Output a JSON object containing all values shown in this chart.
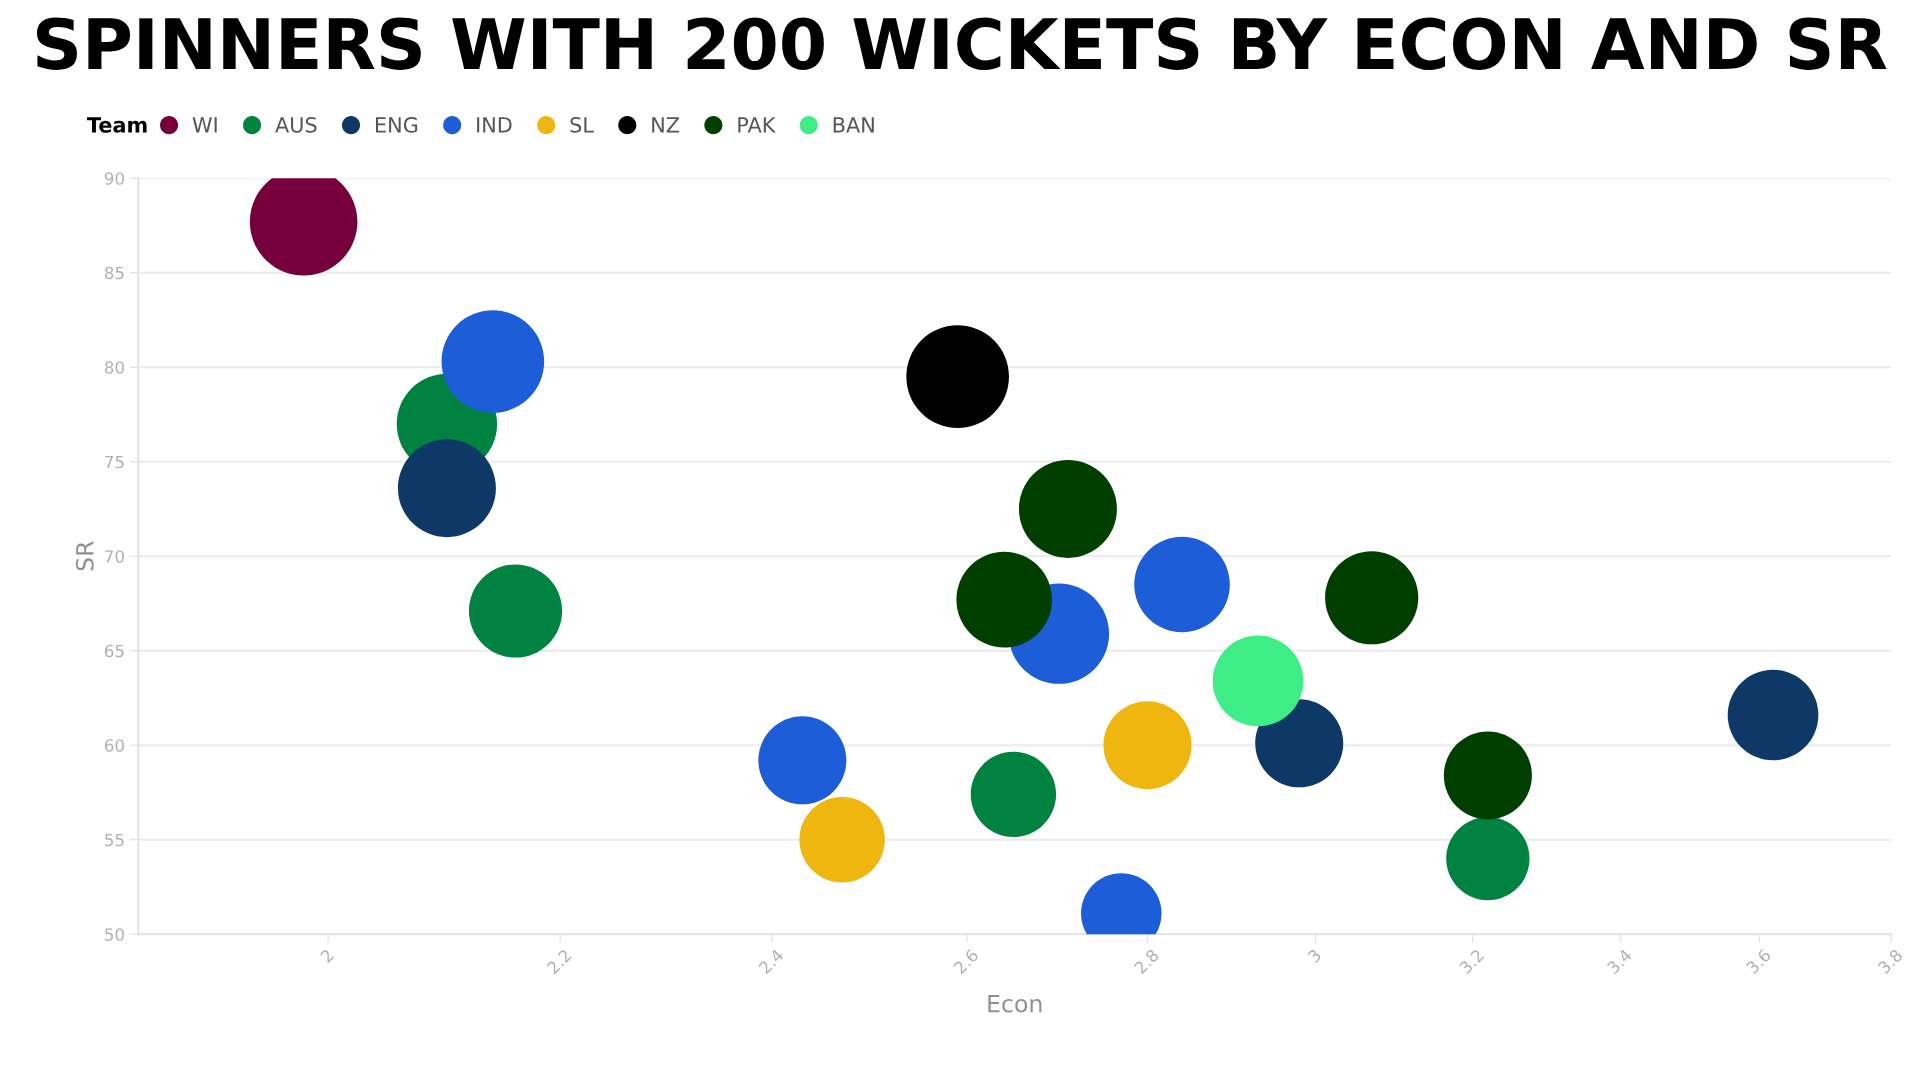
{
  "chart_data": {
    "type": "bubble",
    "title": "SPINNERS WITH 200 WICKETS BY ECON AND SR",
    "xlabel": "Econ",
    "ylabel": "SR",
    "legend_title": "Team",
    "legend": "top left",
    "log": "x",
    "grid": "y",
    "marker": "circle",
    "xlim": [
      1.85,
      3.8
    ],
    "xticks": [
      2,
      2.2,
      2.4,
      2.6,
      2.8,
      3,
      3.2,
      3.4,
      3.6,
      3.8
    ],
    "ylim": [
      50,
      90
    ],
    "yticks": [
      50,
      55,
      60,
      65,
      70,
      75,
      80,
      85,
      90
    ],
    "series": [
      {
        "name": "WI",
        "color": "#76003c",
        "x": [
          1.98
        ],
        "values": [
          87.7
        ],
        "sizes": [
          1.0
        ]
      },
      {
        "name": "AUS",
        "color": "#008340",
        "x": [
          2.1,
          2.16,
          2.65,
          3.22
        ],
        "values": [
          77.0,
          67.1,
          57.4,
          54.0
        ],
        "sizes": [
          0.87,
          0.75,
          0.63,
          0.6
        ]
      },
      {
        "name": "ENG",
        "color": "#0e3966",
        "x": [
          2.1,
          2.98,
          3.62
        ],
        "values": [
          73.6,
          60.1,
          61.6
        ],
        "sizes": [
          0.83,
          0.67,
          0.71
        ]
      },
      {
        "name": "IND",
        "color": "#1d5ed8",
        "x": [
          2.14,
          2.43,
          2.7,
          2.84,
          2.77
        ],
        "values": [
          80.3,
          59.2,
          65.9,
          68.5,
          51.1
        ],
        "sizes": [
          0.91,
          0.67,
          0.87,
          0.79,
          0.56
        ]
      },
      {
        "name": "SL",
        "color": "#efb60f",
        "x": [
          2.47,
          2.8
        ],
        "values": [
          55.0,
          60.0
        ],
        "sizes": [
          0.63,
          0.67
        ]
      },
      {
        "name": "NZ",
        "color": "#000000",
        "x": [
          2.59
        ],
        "values": [
          79.5
        ],
        "sizes": [
          0.91
        ]
      },
      {
        "name": "PAK",
        "color": "#003f00",
        "x": [
          2.71,
          2.64,
          3.07,
          3.22
        ],
        "values": [
          72.5,
          67.7,
          67.8,
          58.4
        ],
        "sizes": [
          0.83,
          0.79,
          0.75,
          0.67
        ]
      },
      {
        "name": "BAN",
        "color": "#3fed87",
        "x": [
          2.93
        ],
        "values": [
          63.4
        ],
        "sizes": [
          0.71
        ]
      }
    ]
  }
}
